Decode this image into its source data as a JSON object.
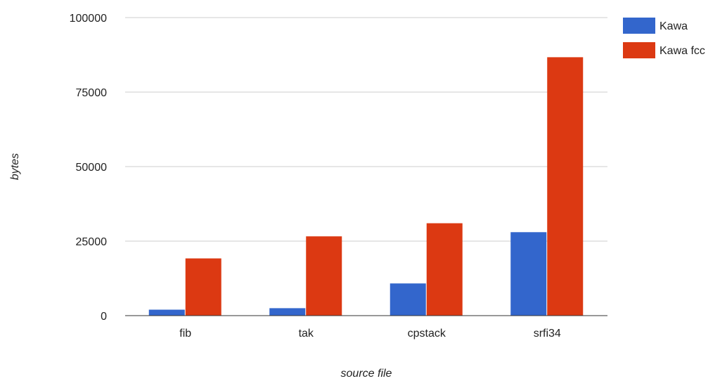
{
  "chart_data": {
    "type": "bar",
    "title": "",
    "xlabel": "source file",
    "ylabel": "bytes",
    "categories": [
      "fib",
      "tak",
      "cpstack",
      "srfi34"
    ],
    "series": [
      {
        "name": "Kawa",
        "color": "#3366cc",
        "values": [
          2000,
          2500,
          10800,
          28000
        ]
      },
      {
        "name": "Kawa fcc",
        "color": "#dc3912",
        "values": [
          19200,
          26600,
          31000,
          86700
        ]
      }
    ],
    "ylim": [
      0,
      100000
    ],
    "yticks": [
      0,
      25000,
      50000,
      75000,
      100000
    ],
    "grid": true,
    "legend_position": "right"
  }
}
